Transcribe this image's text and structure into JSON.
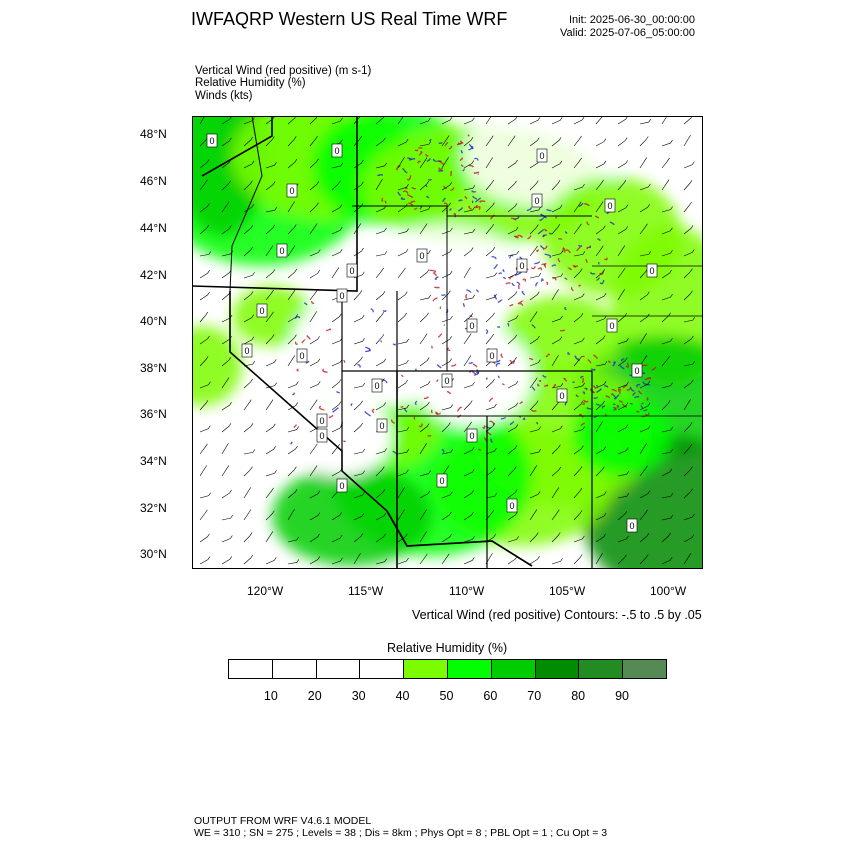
{
  "header": {
    "title": "IWFAQRP Western US Real Time WRF",
    "init": "Init: 2025-06-30_00:00:00",
    "valid": "Valid: 2025-07-06_05:00:00"
  },
  "fields": [
    "Vertical Wind (red positive)   (m s-1)",
    "Relative Humidity   (%)",
    "Winds   (kts)"
  ],
  "map": {
    "lat_ticks": [
      "48°N",
      "46°N",
      "44°N",
      "42°N",
      "40°N",
      "38°N",
      "36°N",
      "34°N",
      "32°N",
      "30°N"
    ],
    "lon_ticks": [
      "120°W",
      "115°W",
      "110°W",
      "105°W",
      "100°W"
    ],
    "contour_label": "0",
    "colors": {
      "vertical_wind_positive": "#c0141e",
      "vertical_wind_negative": "#1e28c8",
      "borders": "#000000"
    }
  },
  "contour_note": "Vertical Wind (red positive) Contours: -.5 to .5 by .05",
  "colorbar": {
    "title": "Relative Humidity  (%)",
    "labels": [
      "10",
      "20",
      "30",
      "40",
      "50",
      "60",
      "70",
      "80",
      "90"
    ],
    "colors": [
      "#ffffff",
      "#ffffff",
      "#ffffff",
      "#ffffff",
      "#7cfc00",
      "#00ff00",
      "#00cd00",
      "#008b00",
      "#228b22",
      "#548b54"
    ]
  },
  "footer": {
    "line1": "OUTPUT FROM WRF V4.6.1 MODEL",
    "line2": "WE = 310 ; SN = 275 ; Levels = 38 ; Dis = 8km ; Phys Opt = 8 ; PBL Opt = 1 ; Cu Opt = 3"
  }
}
